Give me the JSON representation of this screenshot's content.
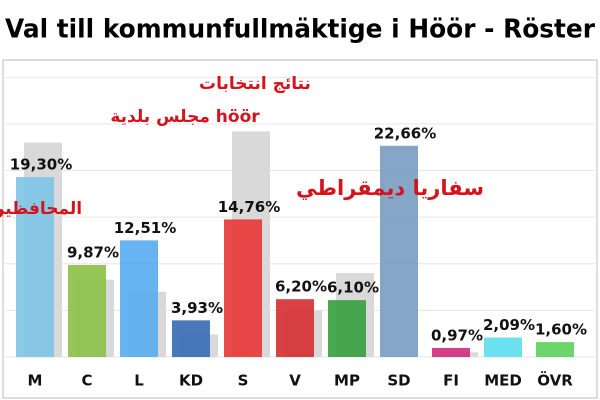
{
  "chart_data": {
    "type": "bar",
    "title": "Val till kommunfullmäktige i Höör - Röster",
    "annotations": [
      "نتائج انتخابات",
      "مجلس بلدية höör",
      "المحافظين",
      "سفاريا ديمقراطي"
    ],
    "categories": [
      "M",
      "C",
      "L",
      "KD",
      "S",
      "V",
      "MP",
      "SD",
      "FI",
      "MED",
      "ÖVR"
    ],
    "series": [
      {
        "color": "#d9d9d9",
        "values": [
          23.0,
          8.3,
          7.0,
          2.4,
          24.2,
          5.0,
          9.0,
          null,
          0.5,
          null,
          null
        ]
      },
      {
        "color": [
          "#80c5e6",
          "#8dc04a",
          "#5aaef0",
          "#3a6db5",
          "#e8393a",
          "#d63132",
          "#3aa040",
          "#7b9ec2",
          "#d1317f",
          "#5fe0f0",
          "#5fd35f"
        ],
        "values": [
          19.3,
          9.87,
          12.51,
          3.93,
          14.76,
          6.2,
          6.1,
          22.66,
          0.97,
          2.09,
          1.6
        ],
        "value_labels": [
          "19,30%",
          "9,87%",
          "12,51%",
          "3,93%",
          "14,76%",
          "6,20%",
          "6,10%",
          "22,66%",
          "0,97%",
          "2,09%",
          "1,60%"
        ]
      }
    ],
    "ylim": [
      0,
      31
    ],
    "yticks": [
      0,
      5,
      10,
      15,
      20,
      25,
      30
    ],
    "grid": true
  }
}
